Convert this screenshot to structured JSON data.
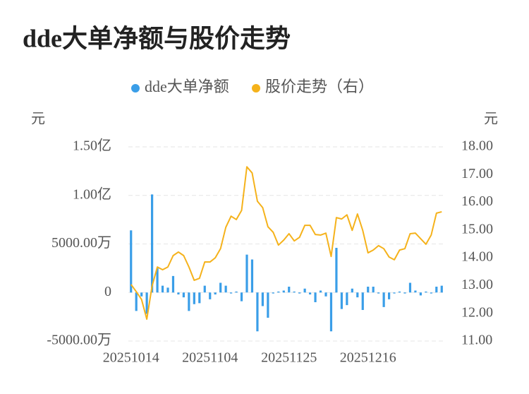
{
  "chart_data": {
    "type": "bar-line",
    "title": "dde大单净额与股价走势",
    "y_label": "元",
    "y2_label": "元",
    "categories": [
      "20251014",
      null,
      null,
      null,
      null,
      null,
      null,
      null,
      null,
      null,
      null,
      null,
      null,
      null,
      null,
      "20251104",
      null,
      null,
      null,
      null,
      null,
      null,
      null,
      null,
      null,
      null,
      null,
      null,
      null,
      null,
      "20251125",
      null,
      null,
      null,
      null,
      null,
      null,
      null,
      null,
      null,
      null,
      null,
      null,
      null,
      null,
      "20251216",
      null,
      null,
      null,
      null,
      null,
      null,
      null,
      null,
      null,
      null,
      null,
      null,
      null,
      null
    ],
    "series": [
      {
        "name": "dde大单净额",
        "color": "#3a9ee8",
        "type": "bar",
        "values": [
          64000000,
          -19000000,
          -4000000,
          -22000000,
          101000000,
          25000000,
          7000000,
          5000000,
          17000000,
          -2000000,
          -5000000,
          -19000000,
          -12000000,
          -11000000,
          7000000,
          -7000000,
          -2000000,
          10000000,
          7000000,
          -1000000,
          1000000,
          -9000000,
          39000000,
          34000000,
          -40000000,
          -14000000,
          -26000000,
          -1000000,
          1000000,
          2000000,
          6000000,
          1000000,
          -1000000,
          4000000,
          -2000000,
          -10000000,
          2000000,
          -4000000,
          -40000000,
          46000000,
          -17000000,
          -13000000,
          4000000,
          -5000000,
          -18000000,
          6000000,
          6000000,
          -1000000,
          -15000000,
          -7000000,
          -1000000,
          1000000,
          -1000000,
          10000000,
          2000000,
          -3000000,
          1000000,
          -1000000,
          6000000,
          7000000
        ]
      },
      {
        "name": "股价走势（右）",
        "color": "#f5b21b",
        "type": "line",
        "axis": "y2",
        "values": [
          13.04,
          12.78,
          12.5,
          11.79,
          12.98,
          13.67,
          13.57,
          13.67,
          14.08,
          14.21,
          14.08,
          13.67,
          13.19,
          13.26,
          13.85,
          13.85,
          14.0,
          14.33,
          15.1,
          15.5,
          15.38,
          15.71,
          17.28,
          17.06,
          16.04,
          15.81,
          15.12,
          14.92,
          14.46,
          14.64,
          14.87,
          14.61,
          14.74,
          15.17,
          15.17,
          14.84,
          14.82,
          14.89,
          14.05,
          15.45,
          15.4,
          15.55,
          14.99,
          15.58,
          14.99,
          14.18,
          14.28,
          14.44,
          14.33,
          14.03,
          13.93,
          14.28,
          14.33,
          14.87,
          14.89,
          14.69,
          14.49,
          14.82,
          15.61,
          15.66
        ]
      }
    ],
    "ylim": [
      -50000000,
      150000000
    ],
    "yticks": [
      {
        "value": -50000000,
        "label": "-5000.00万"
      },
      0,
      {
        "value": 50000000,
        "label": "5000.00万"
      },
      {
        "value": 100000000,
        "label": "1.00亿"
      },
      {
        "value": 150000000,
        "label": "1.50亿"
      }
    ],
    "y2lim": [
      11,
      18
    ],
    "y2ticks": [
      {
        "value": 11,
        "label": "11.00"
      },
      {
        "value": 12,
        "label": "12.00"
      },
      {
        "value": 13,
        "label": "13.00"
      },
      {
        "value": 14,
        "label": "14.00"
      },
      {
        "value": 15,
        "label": "15.00"
      },
      {
        "value": 16,
        "label": "16.00"
      },
      {
        "value": 17,
        "label": "17.00"
      },
      {
        "value": 18,
        "label": "18.00"
      }
    ],
    "grid": true
  }
}
